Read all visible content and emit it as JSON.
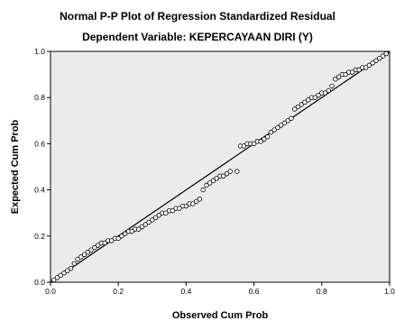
{
  "chart_data": {
    "type": "scatter",
    "title": "Normal P-P Plot of Regression Standardized Residual",
    "subtitle": "Dependent Variable: KEPERCAYAAN DIRI (Y)",
    "xlabel": "Observed Cum Prob",
    "ylabel": "Expected Cum Prob",
    "xlim": [
      0.0,
      1.0
    ],
    "ylim": [
      0.0,
      1.0
    ],
    "x_ticks": [
      "0.0",
      "0.2",
      "0.4",
      "0.6",
      "0.8",
      "1.0"
    ],
    "y_ticks": [
      "0.0",
      "0.2",
      "0.4",
      "0.6",
      "0.8",
      "1.0"
    ],
    "grid": false,
    "reference_line": [
      [
        0.0,
        0.0
      ],
      [
        1.0,
        1.0
      ]
    ],
    "points": [
      [
        0.01,
        0.01
      ],
      [
        0.02,
        0.02
      ],
      [
        0.03,
        0.03
      ],
      [
        0.04,
        0.04
      ],
      [
        0.05,
        0.05
      ],
      [
        0.06,
        0.06
      ],
      [
        0.07,
        0.08
      ],
      [
        0.08,
        0.1
      ],
      [
        0.09,
        0.11
      ],
      [
        0.1,
        0.12
      ],
      [
        0.11,
        0.13
      ],
      [
        0.12,
        0.14
      ],
      [
        0.13,
        0.15
      ],
      [
        0.14,
        0.16
      ],
      [
        0.15,
        0.17
      ],
      [
        0.16,
        0.17
      ],
      [
        0.17,
        0.18
      ],
      [
        0.18,
        0.18
      ],
      [
        0.19,
        0.19
      ],
      [
        0.2,
        0.19
      ],
      [
        0.21,
        0.2
      ],
      [
        0.22,
        0.21
      ],
      [
        0.23,
        0.22
      ],
      [
        0.24,
        0.22
      ],
      [
        0.25,
        0.23
      ],
      [
        0.26,
        0.23
      ],
      [
        0.27,
        0.24
      ],
      [
        0.28,
        0.25
      ],
      [
        0.29,
        0.26
      ],
      [
        0.3,
        0.27
      ],
      [
        0.31,
        0.28
      ],
      [
        0.32,
        0.29
      ],
      [
        0.33,
        0.3
      ],
      [
        0.34,
        0.3
      ],
      [
        0.35,
        0.31
      ],
      [
        0.36,
        0.31
      ],
      [
        0.37,
        0.32
      ],
      [
        0.38,
        0.32
      ],
      [
        0.39,
        0.33
      ],
      [
        0.4,
        0.33
      ],
      [
        0.41,
        0.34
      ],
      [
        0.42,
        0.34
      ],
      [
        0.43,
        0.35
      ],
      [
        0.44,
        0.36
      ],
      [
        0.45,
        0.4
      ],
      [
        0.46,
        0.42
      ],
      [
        0.47,
        0.43
      ],
      [
        0.48,
        0.44
      ],
      [
        0.49,
        0.45
      ],
      [
        0.5,
        0.46
      ],
      [
        0.51,
        0.46
      ],
      [
        0.52,
        0.47
      ],
      [
        0.53,
        0.48
      ],
      [
        0.55,
        0.48
      ],
      [
        0.56,
        0.59
      ],
      [
        0.57,
        0.59
      ],
      [
        0.58,
        0.6
      ],
      [
        0.59,
        0.6
      ],
      [
        0.6,
        0.6
      ],
      [
        0.61,
        0.61
      ],
      [
        0.62,
        0.61
      ],
      [
        0.63,
        0.62
      ],
      [
        0.64,
        0.63
      ],
      [
        0.65,
        0.65
      ],
      [
        0.66,
        0.66
      ],
      [
        0.67,
        0.67
      ],
      [
        0.68,
        0.68
      ],
      [
        0.69,
        0.69
      ],
      [
        0.7,
        0.7
      ],
      [
        0.71,
        0.71
      ],
      [
        0.72,
        0.75
      ],
      [
        0.73,
        0.76
      ],
      [
        0.74,
        0.77
      ],
      [
        0.75,
        0.78
      ],
      [
        0.76,
        0.79
      ],
      [
        0.77,
        0.8
      ],
      [
        0.78,
        0.8
      ],
      [
        0.79,
        0.81
      ],
      [
        0.8,
        0.82
      ],
      [
        0.81,
        0.82
      ],
      [
        0.82,
        0.83
      ],
      [
        0.83,
        0.85
      ],
      [
        0.84,
        0.88
      ],
      [
        0.85,
        0.89
      ],
      [
        0.86,
        0.9
      ],
      [
        0.87,
        0.9
      ],
      [
        0.88,
        0.91
      ],
      [
        0.89,
        0.91
      ],
      [
        0.9,
        0.92
      ],
      [
        0.91,
        0.92
      ],
      [
        0.92,
        0.93
      ],
      [
        0.93,
        0.93
      ],
      [
        0.94,
        0.94
      ],
      [
        0.95,
        0.95
      ],
      [
        0.96,
        0.96
      ],
      [
        0.97,
        0.97
      ],
      [
        0.98,
        0.98
      ],
      [
        0.99,
        0.99
      ]
    ],
    "colors": {
      "plot_background": "#ebebeb",
      "axis": "#000000",
      "reference_line": "#000000",
      "marker_stroke": "#000000",
      "marker_fill": "#ffffff"
    }
  }
}
